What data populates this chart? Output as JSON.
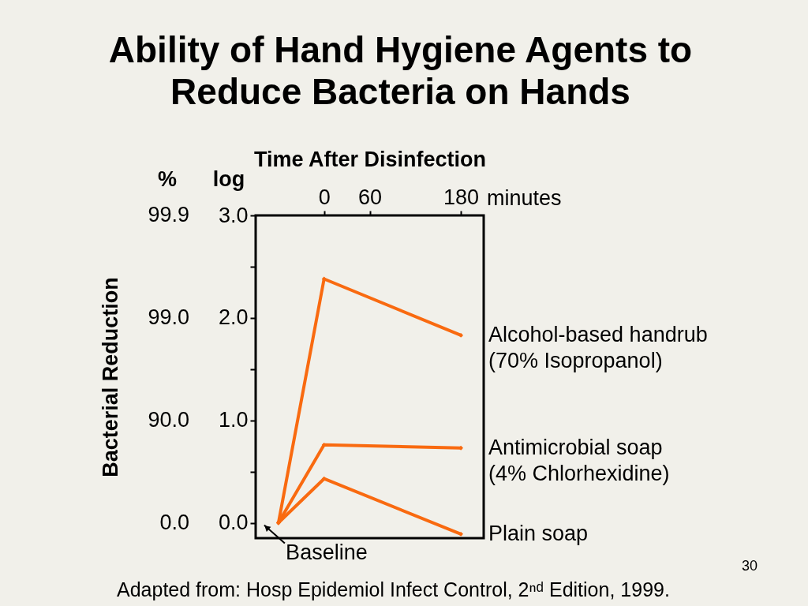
{
  "chart_data": {
    "type": "line",
    "title": "Ability of Hand Hygiene Agents to\nReduce Bacteria on Hands",
    "xlabel": "Time After Disinfection",
    "ylabel": "Bacterial Reduction",
    "x": [
      -60,
      0,
      180
    ],
    "series": [
      {
        "name": "Alcohol-based handrub\n(70% Isopropanol)",
        "color": "#f96a10",
        "values": [
          0,
          2.38,
          1.83
        ]
      },
      {
        "name": "Antimicrobial soap\n(4% Chlorhexidine)",
        "color": "#f96a10",
        "values": [
          0,
          0.76,
          0.73
        ]
      },
      {
        "name": "Plain soap",
        "color": "#f96a10",
        "values": [
          0,
          0.43,
          -0.11
        ]
      }
    ],
    "xlim": [
      -90,
      210
    ],
    "xticks": [
      0,
      60,
      180
    ],
    "ylim": [
      -0.15,
      3
    ],
    "yticks": [
      {
        "value": 0,
        "label": "0.0"
      },
      {
        "value": 0.5,
        "label": null
      },
      {
        "value": 1,
        "label": "1.0"
      },
      {
        "value": 1.5,
        "label": null
      },
      {
        "value": 2,
        "label": "2.0"
      },
      {
        "value": 2.5,
        "label": null
      },
      {
        "value": 3,
        "label": "3.0"
      }
    ],
    "marker": "diamond",
    "line_style": "solid",
    "annotations": [
      "%",
      "log",
      "minutes",
      "99.9",
      "99.0",
      "90.0",
      "0.0",
      {
        "text": "Baseline",
        "x": -60,
        "y": 0
      },
      "Adapted from: Hosp Epidemiol Infect Control, 2ⁿᵈ Edition, 1999.",
      "30"
    ]
  }
}
